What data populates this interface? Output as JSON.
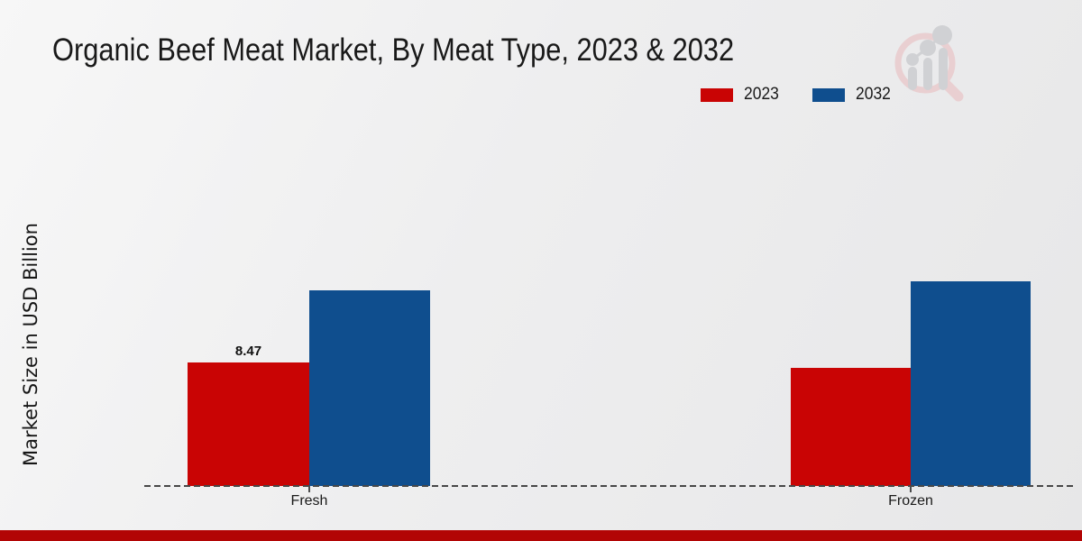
{
  "chart_data": {
    "type": "bar",
    "title": "Organic Beef Meat Market, By Meat Type, 2023 & 2032",
    "xlabel": "",
    "ylabel": "Market Size in USD Billion",
    "categories": [
      "Fresh",
      "Frozen"
    ],
    "series": [
      {
        "name": "2023",
        "color": "#c90404",
        "values": [
          8.47,
          8.1
        ]
      },
      {
        "name": "2032",
        "color": "#0f4e8e",
        "values": [
          13.4,
          14.0
        ]
      }
    ],
    "data_labels": [
      {
        "series": "2023",
        "category": "Fresh",
        "value": "8.47"
      }
    ],
    "legend_position": "top-right",
    "baseline_style": "dashed",
    "grid": "off",
    "colors": {
      "axis_dash": "#474747",
      "text": "#191919"
    }
  },
  "footer": {
    "bar_color": "#b20505"
  },
  "watermark": {
    "icon": "magnifier-bar-chart-logo"
  }
}
